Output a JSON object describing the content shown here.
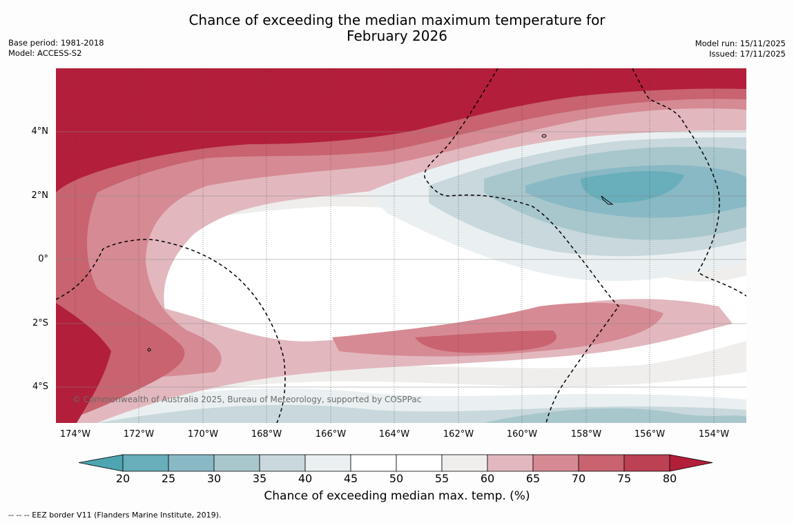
{
  "title_line1": "Chance of exceeding the median maximum temperature for",
  "title_line2": "February 2026",
  "base_period": "Base period: 1981-2018",
  "model": "Model: ACCESS-S2",
  "model_run": "Model run: 15/11/2025",
  "issued": "Issued: 17/11/2025",
  "copyright": "© Commonwealth of Australia 2025, Bureau of Meteorology, supported by COSPPac",
  "x_ticks": [
    "174°W",
    "172°W",
    "170°W",
    "168°W",
    "166°W",
    "164°W",
    "162°W",
    "160°W",
    "158°W",
    "156°W",
    "154°W"
  ],
  "y_ticks": [
    "4°N",
    "2°N",
    "0°",
    "2°S",
    "4°S"
  ],
  "colorbar": {
    "label": "Chance of exceeding median max. temp. (%)",
    "ticks": [
      "20",
      "25",
      "30",
      "35",
      "40",
      "45",
      "50",
      "55",
      "60",
      "65",
      "70",
      "75",
      "80"
    ],
    "colors": [
      "#68aebb",
      "#89b9c5",
      "#a8c7cd",
      "#c8d8dc",
      "#eaf0f1",
      "#ffffff",
      "#ffffff",
      "#efeeed",
      "#e2b8be",
      "#d68a94",
      "#c8636f",
      "#bc4153"
    ],
    "low_extend_color": "#4ea4b1",
    "high_extend_color": "#b31e3a"
  },
  "eez_note": "--  --  -- EEZ border V11 (Flanders Marine Institute, 2019)."
}
